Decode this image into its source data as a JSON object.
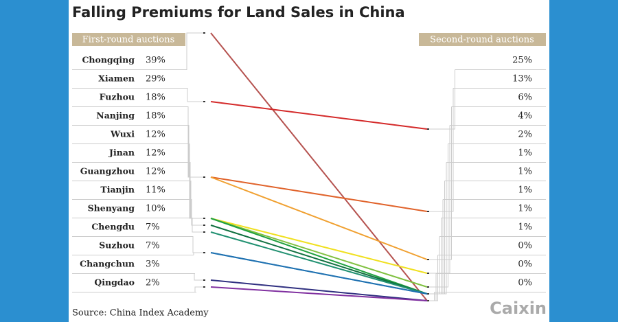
{
  "chart_data": {
    "type": "slope",
    "title": "Falling Premiums for Land Sales in China",
    "source": "Source: China Index Academy",
    "logo": "Caixin",
    "categories": [
      "Chongqing",
      "Xiamen",
      "Fuzhou",
      "Nanjing",
      "Wuxi",
      "Jinan",
      "Guangzhou",
      "Tianjin",
      "Shenyang",
      "Chengdu",
      "Suzhou",
      "Changchun",
      "Qingdao"
    ],
    "colors": [
      "#b5524f",
      "#d42a2a",
      "#e0622a",
      "#f0a030",
      "#f0e020",
      "#80c040",
      "#20a040",
      "#107040",
      "#209070",
      "#40a8d8",
      "#2070b0",
      "#303080",
      "#8030a0"
    ],
    "series": [
      {
        "name": "First-round auctions",
        "values": [
          39,
          29,
          18,
          18,
          12,
          12,
          12,
          11,
          10,
          7,
          7,
          3,
          2
        ],
        "value_labels": [
          "39%",
          "29%",
          "18%",
          "18%",
          "12%",
          "12%",
          "12%",
          "11%",
          "10%",
          "7%",
          "7%",
          "3%",
          "2%"
        ]
      },
      {
        "name": "Second-round auctions",
        "values": [
          0,
          25,
          13,
          6,
          4,
          2,
          1,
          1,
          1,
          1,
          1,
          0,
          0
        ],
        "value_labels": [
          "0%",
          "25%",
          "13%",
          "6%",
          "4%",
          "2%",
          "1%",
          "1%",
          "1%",
          "1%",
          "1%",
          "0%",
          "0%"
        ]
      }
    ],
    "ylim": [
      0,
      40
    ]
  }
}
